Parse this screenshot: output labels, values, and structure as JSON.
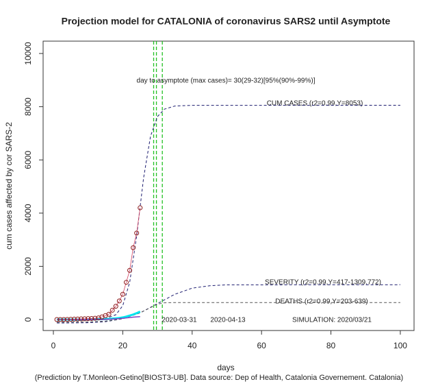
{
  "chart_data": {
    "type": "line",
    "title": "Projection model for CATALONIA of coronavirus SARS2 until Asymptote",
    "xlabel": "days",
    "ylabel": "cum cases affected by cor SARS-2",
    "caption": "(Prediction by T.Monleon-Getino[BIOST3-UB]. Data source: Dep of Health, Catalonia Governement. Catalonia)",
    "annotations": [
      "day to asymptote (max cases)= 30(29-32)[95%(90%-99%)]",
      "CUM CASES (r2=0.99,Y=8053)",
      "SEVERITY (r2=0.99,Y=417-1309.772)",
      "DEATHS (r2=0.99,Y=203-639)",
      "2020-03-31",
      "2020-04-13",
      "SIMULATION: 2020/03/21"
    ],
    "xlim": [
      -2.96,
      103.96
    ],
    "ylim": [
      -412,
      10464
    ],
    "xticks": [
      0,
      20,
      40,
      60,
      80,
      100
    ],
    "yticks": [
      0,
      2000,
      4000,
      6000,
      8000,
      10000
    ],
    "vlines": [
      28.9,
      29.7,
      31.4
    ],
    "vline_color": "#22c022",
    "series": [
      {
        "style": "dashed",
        "color": "#1a1a6e",
        "x": [
          1,
          10,
          15,
          18,
          20,
          22,
          24,
          26,
          28,
          30,
          32,
          35,
          40,
          100
        ],
        "values": [
          0,
          2,
          35,
          180,
          523,
          1403,
          3146,
          5322,
          6889,
          7629,
          7908,
          8025,
          8052,
          8053
        ]
      },
      {
        "style": "dashed",
        "color": "#1a1a6e",
        "x": [
          1,
          10,
          15,
          20,
          25,
          30,
          35,
          40,
          45,
          50,
          100
        ],
        "values": [
          -130,
          -120,
          -80,
          30,
          250,
          600,
          950,
          1180,
          1270,
          1305,
          1310
        ]
      },
      {
        "style": "dashed",
        "color": "#555555",
        "x": [
          1,
          10,
          15,
          20,
          25,
          28,
          30,
          32,
          35,
          100
        ],
        "values": [
          -100,
          -90,
          -60,
          30,
          250,
          450,
          580,
          630,
          639,
          639
        ]
      },
      {
        "style": "thick",
        "color": "#00e5ee",
        "x": [
          1,
          2,
          3,
          4,
          5,
          6,
          7,
          8,
          9,
          10,
          11,
          12,
          13,
          14,
          15,
          16,
          17,
          18,
          19,
          20,
          21,
          22,
          23,
          24,
          25
        ],
        "values": [
          0,
          0,
          0,
          0,
          0,
          0,
          0,
          0,
          0,
          2,
          5,
          8,
          10,
          15,
          20,
          25,
          35,
          45,
          60,
          80,
          110,
          150,
          190,
          240,
          300
        ]
      },
      {
        "style": "line",
        "color": "#8040c0",
        "x": [
          1,
          2,
          3,
          4,
          5,
          6,
          7,
          8,
          9,
          10,
          11,
          12,
          13,
          14,
          15,
          16,
          17,
          18,
          19,
          20,
          21,
          22,
          23,
          24,
          25
        ],
        "values": [
          0,
          0,
          0,
          0,
          0,
          0,
          0,
          0,
          0,
          0,
          1,
          2,
          3,
          5,
          8,
          12,
          18,
          25,
          35,
          45,
          60,
          75,
          90,
          100,
          110
        ]
      },
      {
        "style": "points",
        "color": "#8b1a1a",
        "x": [
          1,
          2,
          3,
          4,
          5,
          6,
          7,
          8,
          9,
          10,
          11,
          12,
          13,
          14,
          15,
          16,
          17,
          18,
          19,
          20,
          21,
          22,
          23,
          24,
          25
        ],
        "values": [
          0,
          0,
          0,
          5,
          10,
          15,
          20,
          25,
          30,
          35,
          40,
          50,
          60,
          100,
          150,
          200,
          350,
          500,
          700,
          950,
          1400,
          1850,
          2700,
          3250,
          4200
        ]
      }
    ]
  }
}
